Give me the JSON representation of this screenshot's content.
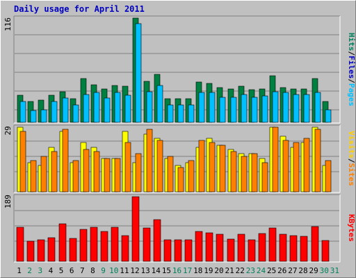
{
  "title": "Daily usage for April 2011",
  "colors": {
    "hits": "#008040",
    "files": "#00c0ff",
    "sites": "#ff8000",
    "visits": "#ffff00",
    "kbytes": "#ff0000",
    "separator": "#000000",
    "weekday_label": "#000000",
    "weekend_label": "#00805c",
    "gridline": "#808080",
    "panel_bg": "#c0c0c0",
    "title": "#0000c0"
  },
  "right_labels": {
    "top": [
      {
        "text": "Hits",
        "color": "#00805c"
      },
      {
        "text": "/",
        "color": "#000000"
      },
      {
        "text": "Files",
        "color": "#0000c0"
      },
      {
        "text": "/",
        "color": "#000000"
      },
      {
        "text": "Pages",
        "color": "#00c0ff"
      }
    ],
    "middle": [
      {
        "text": "Visits",
        "color": "#ffd000"
      },
      {
        "text": "/",
        "color": "#000000"
      },
      {
        "text": "Sites",
        "color": "#ff8000"
      }
    ],
    "bottom": [
      {
        "text": "KBytes",
        "color": "#ff0000"
      }
    ]
  },
  "chart_data": {
    "type": "bar",
    "title": "Daily usage for April 2011",
    "days": [
      "1",
      "2",
      "3",
      "4",
      "5",
      "6",
      "7",
      "8",
      "9",
      "10",
      "11",
      "12",
      "13",
      "14",
      "15",
      "16",
      "17",
      "18",
      "19",
      "20",
      "21",
      "22",
      "23",
      "24",
      "25",
      "26",
      "27",
      "28",
      "29",
      "30",
      "31"
    ],
    "weekend_days": [
      "2",
      "3",
      "9",
      "10",
      "16",
      "17",
      "23",
      "24",
      "30",
      "31"
    ],
    "panels": [
      {
        "id": "top",
        "max_label": "116",
        "ymax": 116,
        "series": [
          {
            "name": "Hits",
            "color": "#008040",
            "values": [
              30,
              23,
              25,
              30,
              34,
              26,
              49,
              42,
              37,
              41,
              40,
              116,
              46,
              53,
              26,
              26,
              26,
              45,
              43,
              39,
              37,
              40,
              36,
              37,
              52,
              39,
              37,
              37,
              49,
              23,
              0
            ]
          },
          {
            "name": "Files",
            "color": "#00c0ff",
            "values": [
              23,
              13,
              14,
              23,
              27,
              19,
              31,
              33,
              27,
              33,
              30,
              110,
              34,
              41,
              19,
              19,
              19,
              33,
              33,
              28,
              28,
              31,
              28,
              29,
              34,
              33,
              31,
              31,
              33,
              14,
              0
            ]
          }
        ]
      },
      {
        "id": "middle",
        "max_label": "29",
        "ymax": 29,
        "series": [
          {
            "name": "Visits",
            "color": "#ffff00",
            "values": [
              29,
              13,
              12,
              20,
              27,
              13,
              22,
              20,
              15,
              15,
              27,
              13,
              26,
              24,
              15,
              12,
              13,
              20,
              24,
              21,
              19,
              17,
              17,
              15,
              29,
              25,
              20,
              22,
              29,
              12,
              0
            ]
          },
          {
            "name": "Sites",
            "color": "#ff8000",
            "values": [
              27,
              14,
              16,
              18,
              28,
              14,
              19,
              18,
              15,
              15,
              22,
              17,
              28,
              23,
              16,
              11,
              14,
              23,
              22,
              21,
              18,
              16,
              17,
              13,
              29,
              23,
              22,
              24,
              28,
              14,
              0
            ]
          }
        ]
      },
      {
        "id": "bottom",
        "max_label": "189",
        "ymax": 189,
        "series": [
          {
            "name": "KBytes",
            "color": "#ff0000",
            "values": [
              100,
              58,
              64,
              70,
              110,
              68,
              94,
              100,
              88,
              100,
              76,
              189,
              98,
              122,
              64,
              64,
              64,
              88,
              84,
              80,
              66,
              80,
              64,
              82,
              98,
              80,
              76,
              74,
              102,
              60,
              0
            ]
          }
        ]
      }
    ]
  }
}
